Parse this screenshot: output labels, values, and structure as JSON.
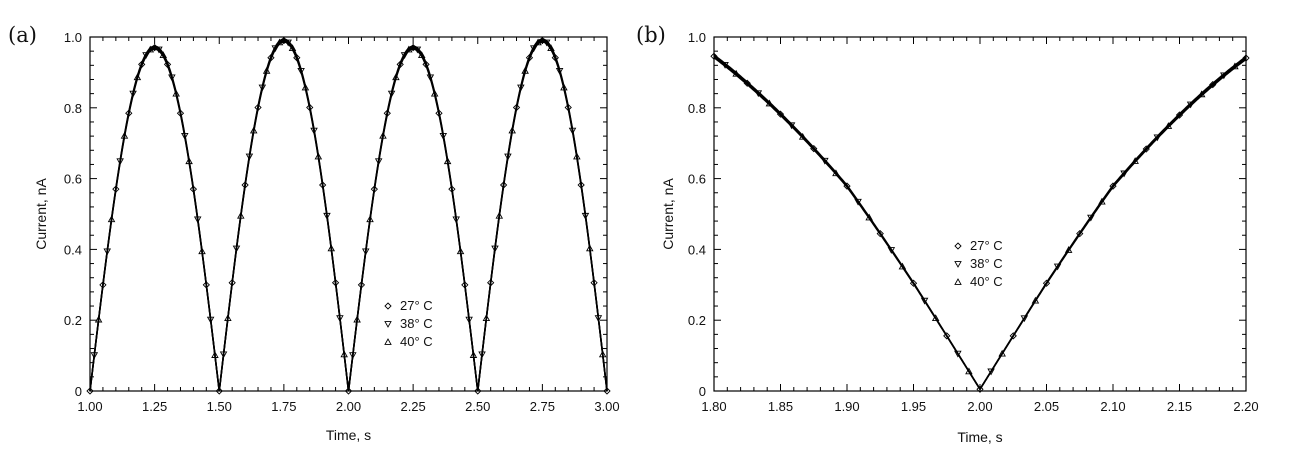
{
  "chart_data": [
    {
      "panel_label": "(a)",
      "type": "line",
      "xlabel": "Time, s",
      "ylabel": "Current, nA",
      "xlim": [
        1.0,
        3.0
      ],
      "ylim": [
        0,
        1.0
      ],
      "x_ticks": [
        "1.00",
        "1.25",
        "1.50",
        "1.75",
        "2.00",
        "2.25",
        "2.50",
        "2.75",
        "3.00"
      ],
      "y_ticks": [
        "0",
        "0.2",
        "0.4",
        "0.6",
        "0.8",
        "1.0"
      ],
      "legend": [
        "27° C",
        "38° C",
        "40° C"
      ],
      "legend_position": "lower-right",
      "series": [
        {
          "name": "27° C",
          "marker": "diamond"
        },
        {
          "name": "38° C",
          "marker": "triangle-down"
        },
        {
          "name": "40° C",
          "marker": "triangle-up"
        }
      ],
      "curve": {
        "shape": "rectified sine |sin(2π·t)|",
        "zeros": [
          1.0,
          1.5,
          2.0,
          2.5,
          3.0
        ],
        "peaks": [
          {
            "x": 1.25,
            "y": 0.97
          },
          {
            "x": 1.75,
            "y": 0.99
          },
          {
            "x": 2.25,
            "y": 0.97
          },
          {
            "x": 2.75,
            "y": 0.99
          }
        ]
      }
    },
    {
      "panel_label": "(b)",
      "type": "line",
      "xlabel": "Time, s",
      "ylabel": "Current, nA",
      "xlim": [
        1.8,
        2.2
      ],
      "ylim": [
        0,
        1.0
      ],
      "x_ticks": [
        "1.80",
        "1.85",
        "1.90",
        "1.95",
        "2.00",
        "2.05",
        "2.10",
        "2.15",
        "2.20"
      ],
      "y_ticks": [
        "0",
        "0.2",
        "0.4",
        "0.6",
        "0.8",
        "1.0"
      ],
      "legend": [
        "27° C",
        "38° C",
        "40° C"
      ],
      "legend_position": "center",
      "series": [
        {
          "name": "27° C",
          "marker": "diamond"
        },
        {
          "name": "38° C",
          "marker": "triangle-down"
        },
        {
          "name": "40° C",
          "marker": "triangle-up"
        }
      ],
      "curve": {
        "shape": "rectified sine |sin(2π·t)| near minimum",
        "points": [
          {
            "x": 1.8,
            "y": 0.94
          },
          {
            "x": 1.9,
            "y": 0.57
          },
          {
            "x": 1.95,
            "y": 0.3
          },
          {
            "x": 2.0,
            "y": 0.01
          },
          {
            "x": 2.05,
            "y": 0.3
          },
          {
            "x": 2.1,
            "y": 0.57
          },
          {
            "x": 2.2,
            "y": 0.93
          }
        ]
      }
    }
  ]
}
